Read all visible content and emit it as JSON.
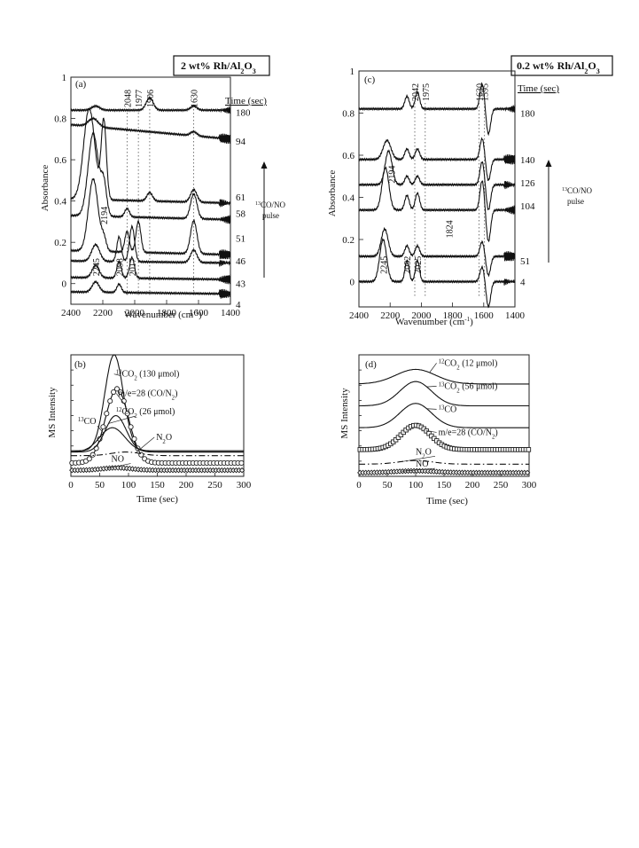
{
  "chart_data": [
    {
      "type": "line",
      "panel": "(a)",
      "boxed_label": "2 wt% Rh/Al2O3",
      "xlabel": "Wavenumber (cm-1)",
      "ylabel": "Absorbance",
      "xlim": [
        2400,
        1400
      ],
      "ylim": [
        -0.1,
        1.0
      ],
      "x_ticks": [
        2400,
        2200,
        2000,
        1800,
        1600,
        1400
      ],
      "y_ticks": [
        0,
        0.2,
        0.4,
        0.6,
        0.8,
        1
      ],
      "time_header": "Time (sec)",
      "pulse_label": "13CO/NO pulse",
      "peak_labels": [
        {
          "label": "2048",
          "x": 2048,
          "pos": "top"
        },
        {
          "label": "1977",
          "x": 1977,
          "pos": "top"
        },
        {
          "label": "1906",
          "x": 1906,
          "pos": "top"
        },
        {
          "label": "1630",
          "x": 1630,
          "pos": "top"
        },
        {
          "label": "2194",
          "x": 2194,
          "pos": "mid",
          "y": 0.27
        },
        {
          "label": "2245",
          "x": 2245,
          "pos": "bottom",
          "y": 0.02
        },
        {
          "label": "2098",
          "x": 2098,
          "pos": "bottom",
          "y": 0.02
        },
        {
          "label": "2017",
          "x": 2017,
          "pos": "bottom",
          "y": 0.02
        }
      ],
      "series": [
        {
          "name": "180",
          "baseline": 0.84,
          "label_y": 0.83,
          "slope": 0.0,
          "peaks": [
            {
              "x": 2245,
              "h": 0.02,
              "w": 25
            },
            {
              "x": 1906,
              "h": 0.06,
              "w": 22
            },
            {
              "x": 1630,
              "h": 0.02,
              "w": 20
            }
          ]
        },
        {
          "name": "94",
          "baseline": 0.77,
          "label_y": 0.69,
          "slope": -0.07,
          "peaks": [
            {
              "x": 2260,
              "h": 0.04,
              "w": 30
            },
            {
              "x": 1630,
              "h": 0.02,
              "w": 20
            }
          ]
        },
        {
          "name": "61",
          "baseline": 0.41,
          "label_y": 0.42,
          "slope": -0.02,
          "peaks": [
            {
              "x": 2285,
              "h": 0.44,
              "w": 35
            },
            {
              "x": 2194,
              "h": 0.38,
              "w": 16
            },
            {
              "x": 1906,
              "h": 0.04,
              "w": 18
            },
            {
              "x": 1630,
              "h": 0.06,
              "w": 20
            }
          ]
        },
        {
          "name": "58",
          "baseline": 0.33,
          "label_y": 0.34,
          "slope": -0.02,
          "peaks": [
            {
              "x": 2260,
              "h": 0.4,
              "w": 32
            },
            {
              "x": 2194,
              "h": 0.15,
              "w": 18
            },
            {
              "x": 2048,
              "h": 0.04,
              "w": 15
            },
            {
              "x": 1630,
              "h": 0.12,
              "w": 20
            }
          ]
        },
        {
          "name": "51",
          "baseline": 0.16,
          "label_y": 0.22,
          "slope": -0.02,
          "peaks": [
            {
              "x": 2260,
              "h": 0.35,
              "w": 30
            },
            {
              "x": 2194,
              "h": 0.06,
              "w": 16
            },
            {
              "x": 2048,
              "h": 0.1,
              "w": 14
            },
            {
              "x": 1977,
              "h": 0.15,
              "w": 15
            },
            {
              "x": 1630,
              "h": 0.16,
              "w": 20
            }
          ]
        },
        {
          "name": "46",
          "baseline": 0.11,
          "label_y": 0.11,
          "slope": -0.01,
          "peaks": [
            {
              "x": 2245,
              "h": 0.08,
              "w": 25
            },
            {
              "x": 2098,
              "h": 0.12,
              "w": 14
            },
            {
              "x": 2017,
              "h": 0.17,
              "w": 16
            },
            {
              "x": 1630,
              "h": 0.06,
              "w": 20
            }
          ]
        },
        {
          "name": "43",
          "baseline": 0.03,
          "label_y": 0.0,
          "slope": -0.01,
          "peaks": [
            {
              "x": 2245,
              "h": 0.06,
              "w": 22
            },
            {
              "x": 2098,
              "h": 0.08,
              "w": 14
            },
            {
              "x": 2017,
              "h": 0.1,
              "w": 15
            }
          ]
        },
        {
          "name": "4",
          "baseline": -0.04,
          "label_y": -0.1,
          "slope": -0.01,
          "peaks": [
            {
              "x": 2245,
              "h": 0.05,
              "w": 22
            },
            {
              "x": 2098,
              "h": 0.04,
              "w": 14
            }
          ]
        }
      ]
    },
    {
      "type": "line",
      "panel": "(c)",
      "boxed_label": "0.2 wt% Rh/Al2O3",
      "xlabel": "Wavenumber (cm-1)",
      "ylabel": "Absorbance",
      "xlim": [
        2400,
        1400
      ],
      "ylim": [
        -0.12,
        1.0
      ],
      "x_ticks": [
        2400,
        2200,
        2000,
        1800,
        1600,
        1400
      ],
      "y_ticks": [
        0,
        0.2,
        0.4,
        0.6,
        0.8,
        1
      ],
      "time_header": "Time (sec)",
      "pulse_label": "13CO/NO pulse",
      "peak_labels": [
        {
          "label": "2042",
          "x": 2042,
          "pos": "top"
        },
        {
          "label": "1975",
          "x": 1975,
          "pos": "top"
        },
        {
          "label": "1630",
          "x": 1630,
          "pos": "top"
        },
        {
          "label": "1595",
          "x": 1595,
          "pos": "top"
        },
        {
          "label": "2194",
          "x": 2194,
          "pos": "mid",
          "y": 0.45
        },
        {
          "label": "1824",
          "x": 1824,
          "pos": "mid",
          "y": 0.19
        },
        {
          "label": "2245",
          "x": 2245,
          "pos": "bottom",
          "y": 0.02
        },
        {
          "label": "2092",
          "x": 2092,
          "pos": "bottom",
          "y": 0.02
        },
        {
          "label": "2025",
          "x": 2025,
          "pos": "bottom",
          "y": 0.02
        }
      ],
      "series": [
        {
          "name": "180",
          "baseline": 0.82,
          "label_y": 0.8,
          "slope": 0.0,
          "peaks": [
            {
              "x": 2092,
              "h": 0.06,
              "w": 14
            },
            {
              "x": 2025,
              "h": 0.08,
              "w": 14
            },
            {
              "x": 1610,
              "h": 0.12,
              "w": 14
            },
            {
              "x": 1570,
              "h": -0.12,
              "w": 14
            }
          ]
        },
        {
          "name": "140",
          "baseline": 0.58,
          "label_y": 0.58,
          "slope": 0.0,
          "peaks": [
            {
              "x": 2220,
              "h": 0.09,
              "w": 25
            },
            {
              "x": 2092,
              "h": 0.05,
              "w": 14
            },
            {
              "x": 2025,
              "h": 0.05,
              "w": 14
            },
            {
              "x": 1610,
              "h": 0.1,
              "w": 14
            },
            {
              "x": 1570,
              "h": -0.1,
              "w": 14
            }
          ]
        },
        {
          "name": "126",
          "baseline": 0.46,
          "label_y": 0.47,
          "slope": 0.0,
          "peaks": [
            {
              "x": 2210,
              "h": 0.16,
              "w": 22
            },
            {
              "x": 2092,
              "h": 0.04,
              "w": 14
            },
            {
              "x": 2025,
              "h": 0.04,
              "w": 14
            },
            {
              "x": 1610,
              "h": 0.11,
              "w": 14
            },
            {
              "x": 1570,
              "h": -0.12,
              "w": 14
            }
          ]
        },
        {
          "name": "104",
          "baseline": 0.34,
          "label_y": 0.36,
          "slope": 0.0,
          "peaks": [
            {
              "x": 2230,
              "h": 0.2,
              "w": 22
            },
            {
              "x": 2092,
              "h": 0.07,
              "w": 14
            },
            {
              "x": 2025,
              "h": 0.08,
              "w": 14
            },
            {
              "x": 1610,
              "h": 0.14,
              "w": 14
            },
            {
              "x": 1570,
              "h": -0.15,
              "w": 14
            }
          ]
        },
        {
          "name": "51",
          "baseline": 0.12,
          "label_y": 0.1,
          "slope": 0.0,
          "peaks": [
            {
              "x": 2235,
              "h": 0.13,
              "w": 22
            },
            {
              "x": 2092,
              "h": 0.05,
              "w": 14
            },
            {
              "x": 2025,
              "h": 0.05,
              "w": 14
            },
            {
              "x": 1610,
              "h": 0.07,
              "w": 14
            },
            {
              "x": 1570,
              "h": -0.09,
              "w": 14
            }
          ]
        },
        {
          "name": "4",
          "baseline": 0.0,
          "label_y": 0.0,
          "slope": 0.0,
          "peaks": [
            {
              "x": 2245,
              "h": 0.2,
              "w": 22
            },
            {
              "x": 2092,
              "h": 0.1,
              "w": 13
            },
            {
              "x": 2025,
              "h": 0.1,
              "w": 13
            },
            {
              "x": 1610,
              "h": 0.07,
              "w": 14
            },
            {
              "x": 1570,
              "h": -0.12,
              "w": 14
            }
          ]
        }
      ]
    },
    {
      "type": "line",
      "panel": "(b)",
      "xlabel": "Time (sec)",
      "ylabel": "MS Intensity",
      "xlim": [
        0,
        300
      ],
      "ylim": [
        0,
        1
      ],
      "x_ticks": [
        0,
        50,
        100,
        150,
        200,
        250,
        300
      ],
      "series": [
        {
          "name": "13CO2 (130 μmol)",
          "baseline": 0.21,
          "peak_x": 75,
          "peak_h": 0.79,
          "width": 16,
          "marker": "none",
          "label_x": 78,
          "label_y": 0.82
        },
        {
          "name": "m/e=28 (CO/N2)",
          "baseline": 0.11,
          "peak_x": 80,
          "peak_h": 0.61,
          "width": 20,
          "marker": "circle",
          "label_x": 82,
          "label_y": 0.66
        },
        {
          "name": "12CO2 (26 μmol)",
          "baseline": 0.2,
          "peak_x": 78,
          "peak_h": 0.3,
          "width": 18,
          "marker": "none",
          "label_x": 78,
          "label_y": 0.51
        },
        {
          "name": "13CO",
          "baseline": 0.2,
          "peak_x": 72,
          "peak_h": 0.2,
          "width": 22,
          "marker": "none",
          "label_x": 12,
          "label_y": 0.43
        },
        {
          "name": "N2O",
          "baseline": 0.17,
          "peak_x": 95,
          "peak_h": 0.03,
          "width": 25,
          "marker": "none",
          "dash": "dash-dot",
          "label_x": 148,
          "label_y": 0.3
        },
        {
          "name": "NO",
          "baseline": 0.05,
          "peak_x": 80,
          "peak_h": 0.02,
          "width": 25,
          "marker": "diamond",
          "label_x": 70,
          "label_y": 0.12
        }
      ]
    },
    {
      "type": "line",
      "panel": "(d)",
      "xlabel": "Time (sec)",
      "ylabel": "MS Intensity",
      "xlim": [
        0,
        300
      ],
      "ylim": [
        0,
        1
      ],
      "x_ticks": [
        0,
        50,
        100,
        150,
        200,
        250,
        300
      ],
      "series": [
        {
          "name": "12CO2 (12 μmol)",
          "baseline": 0.76,
          "peak_x": 100,
          "peak_h": 0.12,
          "width": 35,
          "marker": "none",
          "label_x": 140,
          "label_y": 0.91
        },
        {
          "name": "13CO2 (56 μmol)",
          "baseline": 0.58,
          "peak_x": 100,
          "peak_h": 0.2,
          "width": 28,
          "marker": "none",
          "label_x": 140,
          "label_y": 0.72
        },
        {
          "name": "13CO",
          "baseline": 0.4,
          "peak_x": 100,
          "peak_h": 0.2,
          "width": 28,
          "marker": "none",
          "label_x": 140,
          "label_y": 0.53
        },
        {
          "name": "m/e=28 (CO/N2)",
          "baseline": 0.22,
          "peak_x": 100,
          "peak_h": 0.2,
          "width": 26,
          "marker": "square",
          "label_x": 140,
          "label_y": 0.34
        },
        {
          "name": "N2O",
          "baseline": 0.1,
          "peak_x": 100,
          "peak_h": 0.03,
          "width": 30,
          "marker": "none",
          "dash": "dash-dot",
          "label_x": 100,
          "label_y": 0.18
        },
        {
          "name": "NO",
          "baseline": 0.03,
          "peak_x": 100,
          "peak_h": 0.015,
          "width": 35,
          "marker": "diamond",
          "label_x": 100,
          "label_y": 0.08
        }
      ]
    }
  ]
}
